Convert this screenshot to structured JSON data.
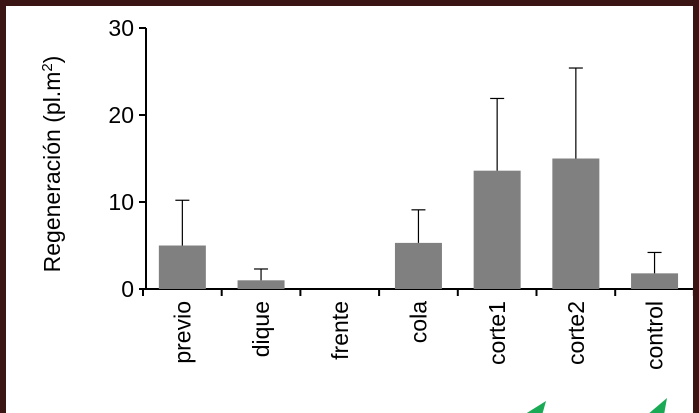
{
  "chart_data": {
    "type": "bar",
    "ylabel": "Regeneración (pl.m",
    "ylabel_superscript": "2",
    "ylabel_suffix": ")",
    "ylim": [
      0,
      30
    ],
    "yticks": [
      0,
      10,
      20,
      30
    ],
    "categories": [
      "previo",
      "dique",
      "frente",
      "cola",
      "corte1",
      "corte2",
      "control"
    ],
    "values": [
      5.0,
      1.0,
      0.0,
      5.3,
      13.6,
      15.0,
      1.8
    ],
    "error_plus": [
      5.2,
      1.3,
      0.0,
      3.8,
      8.3,
      10.4,
      2.4
    ],
    "bar_color": "#808080",
    "legend": "none",
    "grid": false
  },
  "decor": {
    "arrow_color": "#1aaa55"
  }
}
